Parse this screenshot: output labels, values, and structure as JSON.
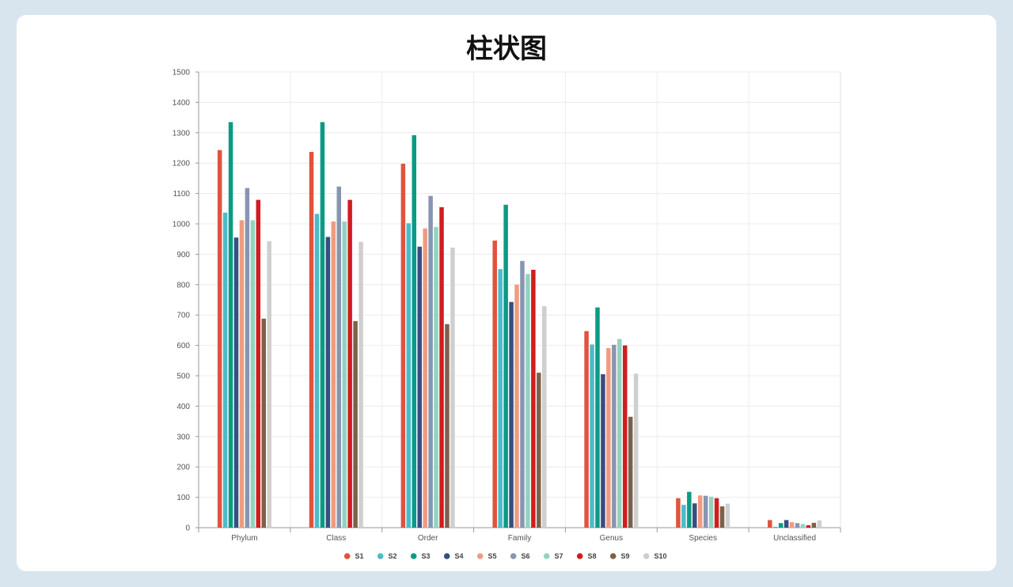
{
  "chart_data": {
    "type": "bar",
    "title": "柱状图",
    "xlabel": "",
    "ylabel": "",
    "ylim": [
      0,
      1500
    ],
    "yticks": [
      0,
      100,
      200,
      300,
      400,
      500,
      600,
      700,
      800,
      900,
      1000,
      1100,
      1200,
      1300,
      1400,
      1500
    ],
    "grid": true,
    "legend_position": "bottom",
    "categories": [
      "Phylum",
      "Class",
      "Order",
      "Family",
      "Genus",
      "Species",
      "Unclassified"
    ],
    "series": [
      {
        "name": "S1",
        "color": "#e0533f",
        "values": [
          1243,
          1237,
          1198,
          945,
          647,
          97,
          25
        ]
      },
      {
        "name": "S2",
        "color": "#4cbbc9",
        "values": [
          1037,
          1033,
          1002,
          851,
          603,
          75,
          3
        ]
      },
      {
        "name": "S3",
        "color": "#0b9b84",
        "values": [
          1335,
          1335,
          1292,
          1063,
          725,
          118,
          15
        ]
      },
      {
        "name": "S4",
        "color": "#354f80",
        "values": [
          955,
          957,
          925,
          743,
          505,
          80,
          25
        ]
      },
      {
        "name": "S5",
        "color": "#f09b80",
        "values": [
          1012,
          1008,
          985,
          800,
          591,
          106,
          18
        ]
      },
      {
        "name": "S6",
        "color": "#8895b2",
        "values": [
          1118,
          1123,
          1092,
          878,
          602,
          105,
          15
        ]
      },
      {
        "name": "S7",
        "color": "#91d3c0",
        "values": [
          1012,
          1008,
          990,
          835,
          621,
          102,
          12
        ]
      },
      {
        "name": "S8",
        "color": "#d11d1d",
        "values": [
          1079,
          1079,
          1055,
          849,
          600,
          97,
          8
        ]
      },
      {
        "name": "S9",
        "color": "#7e6048",
        "values": [
          688,
          680,
          670,
          510,
          365,
          70,
          16
        ]
      },
      {
        "name": "S10",
        "color": "#cfcfcf",
        "values": [
          943,
          941,
          922,
          729,
          507,
          79,
          24
        ]
      }
    ]
  }
}
